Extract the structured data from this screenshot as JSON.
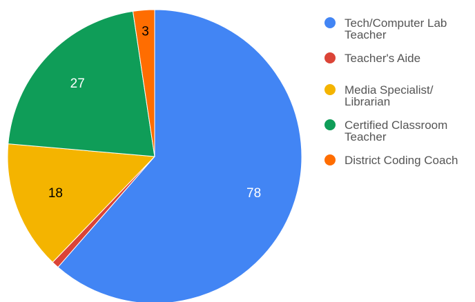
{
  "chart_data": {
    "type": "pie",
    "categories": [
      "Tech/Computer Lab Teacher",
      "Teacher's Aide",
      "Media Specialist/Librarian",
      "Certified Classroom Teacher",
      "District Coding Coach"
    ],
    "values": [
      78,
      1,
      18,
      27,
      3
    ],
    "colors": [
      "#4285f4",
      "#db4437",
      "#f4b400",
      "#0f9d58",
      "#ff6d01"
    ],
    "legend": "right"
  }
}
